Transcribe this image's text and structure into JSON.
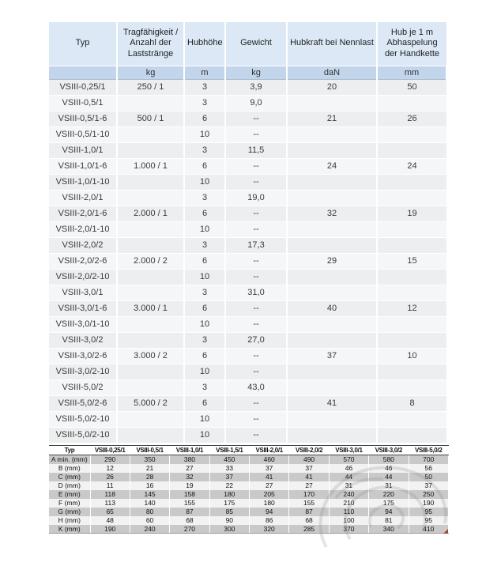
{
  "colors": {
    "header_bg": "#dce8f5",
    "units_bg": "#c3d5eb",
    "row_odd": "#eceeef",
    "row_even": "#f5f6f7",
    "dims_gray": "#c9c9c9",
    "dims_light": "#f2f2f2",
    "dims_border": "#444444",
    "corner_mark": "#9b4a3c"
  },
  "main_table": {
    "headers": [
      "Typ",
      "Tragfähigkeit / Anzahl der Laststränge",
      "Hubhöhe",
      "Gewicht",
      "Hubkraft bei Nennlast",
      "Hub je 1 m Abhaspelung der Handkette"
    ],
    "units": [
      "",
      "kg",
      "m",
      "kg",
      "daN",
      "mm"
    ],
    "rows": [
      [
        "VSIII-0,25/1",
        "250 / 1",
        "3",
        "3,9",
        "20",
        "50"
      ],
      [
        "VSIII-0,5/1",
        "",
        "3",
        "9,0",
        "",
        ""
      ],
      [
        "VSIII-0,5/1-6",
        "500 / 1",
        "6",
        "--",
        "21",
        "26"
      ],
      [
        "VSIII-0,5/1-10",
        "",
        "10",
        "--",
        "",
        ""
      ],
      [
        "VSIII-1,0/1",
        "",
        "3",
        "11,5",
        "",
        ""
      ],
      [
        "VSIII-1,0/1-6",
        "1.000 / 1",
        "6",
        "--",
        "24",
        "24"
      ],
      [
        "VSIII-1,0/1-10",
        "",
        "10",
        "--",
        "",
        ""
      ],
      [
        "VSIII-2,0/1",
        "",
        "3",
        "19,0",
        "",
        ""
      ],
      [
        "VSIII-2,0/1-6",
        "2.000 / 1",
        "6",
        "--",
        "32",
        "19"
      ],
      [
        "VSIII-2,0/1-10",
        "",
        "10",
        "--",
        "",
        ""
      ],
      [
        "VSIII-2,0/2",
        "",
        "3",
        "17,3",
        "",
        ""
      ],
      [
        "VSIII-2,0/2-6",
        "2.000 / 2",
        "6",
        "--",
        "29",
        "15"
      ],
      [
        "VSIII-2,0/2-10",
        "",
        "10",
        "--",
        "",
        ""
      ],
      [
        "VSIII-3,0/1",
        "",
        "3",
        "31,0",
        "",
        ""
      ],
      [
        "VSIII-3,0/1-6",
        "3.000 / 1",
        "6",
        "--",
        "40",
        "12"
      ],
      [
        "VSIII-3,0/1-10",
        "",
        "10",
        "--",
        "",
        ""
      ],
      [
        "VSIII-3,0/2",
        "",
        "3",
        "27,0",
        "",
        ""
      ],
      [
        "VSIII-3,0/2-6",
        "3.000 / 2",
        "6",
        "--",
        "37",
        "10"
      ],
      [
        "VSIII-3,0/2-10",
        "",
        "10",
        "--",
        "",
        ""
      ],
      [
        "VSIII-5,0/2",
        "",
        "3",
        "43,0",
        "",
        ""
      ],
      [
        "VSIII-5,0/2-6",
        "5.000 / 2",
        "6",
        "--",
        "41",
        "8"
      ],
      [
        "VSIII-5,0/2-10",
        "",
        "10",
        "--",
        "",
        ""
      ],
      [
        "VSIII-5,0/2-10",
        "",
        "10",
        "--",
        "",
        ""
      ]
    ]
  },
  "dimensions_table": {
    "headers": [
      "Typ",
      "VSIII-0,25/1",
      "VSIII-0,5/1",
      "VSIII-1,0/1",
      "VSIII-1,5/1",
      "VSIII-2,0/1",
      "VSIII-2,0/2",
      "VSIII-3,0/1",
      "VSIII-3,0/2",
      "VSIII-5,0/2"
    ],
    "rows": [
      [
        "A min. (mm)",
        "290",
        "350",
        "380",
        "450",
        "460",
        "490",
        "570",
        "580",
        "700"
      ],
      [
        "B (mm)",
        "12",
        "21",
        "27",
        "33",
        "37",
        "37",
        "46",
        "46",
        "56"
      ],
      [
        "C (mm)",
        "26",
        "28",
        "32",
        "37",
        "41",
        "41",
        "44",
        "44",
        "50"
      ],
      [
        "D (mm)",
        "11",
        "16",
        "19",
        "22",
        "27",
        "27",
        "31",
        "31",
        "37"
      ],
      [
        "E (mm)",
        "118",
        "145",
        "158",
        "180",
        "205",
        "170",
        "240",
        "220",
        "250"
      ],
      [
        "F (mm)",
        "113",
        "140",
        "155",
        "175",
        "180",
        "155",
        "210",
        "175",
        "190"
      ],
      [
        "G (mm)",
        "65",
        "80",
        "87",
        "85",
        "94",
        "87",
        "110",
        "94",
        "95"
      ],
      [
        "H (mm)",
        "48",
        "60",
        "68",
        "90",
        "86",
        "68",
        "100",
        "81",
        "95"
      ],
      [
        "K (mm)",
        "190",
        "240",
        "270",
        "300",
        "320",
        "285",
        "370",
        "340",
        "410"
      ]
    ]
  }
}
